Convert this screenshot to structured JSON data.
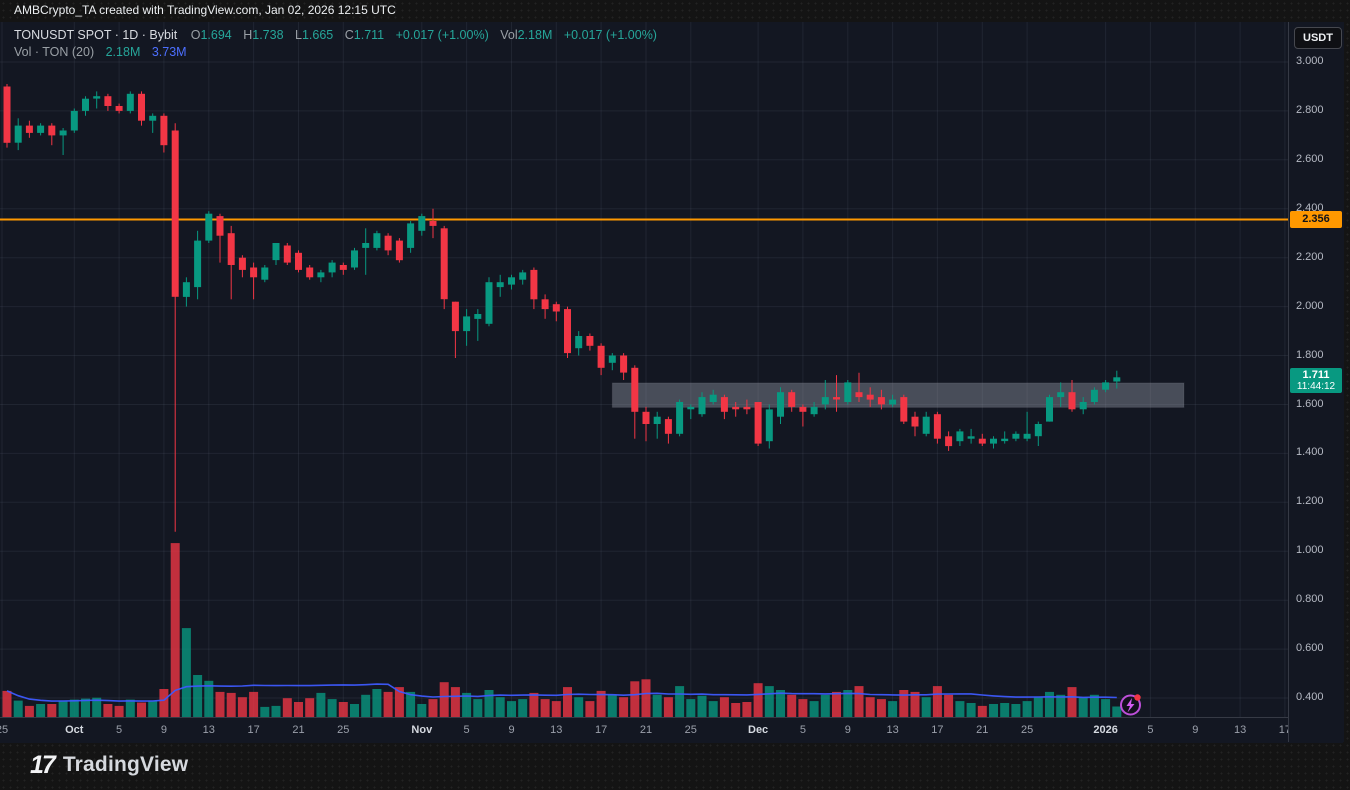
{
  "top_bar": {
    "attribution": "AMBCrypto_TA created with TradingView.com, Jan 02, 2026 12:15 UTC"
  },
  "legend": {
    "title": "TONUSDT SPOT · 1D · Bybit",
    "ohlc": [
      {
        "k": "O",
        "v": "1.694"
      },
      {
        "k": "H",
        "v": "1.738"
      },
      {
        "k": "L",
        "v": "1.665"
      },
      {
        "k": "C",
        "v": "1.711"
      }
    ],
    "change": "+0.017 (+1.00%)",
    "vol_k": "Vol",
    "vol_v": "2.18M",
    "vol_change": "+0.017 (+1.00%)",
    "row2_label": "Vol · TON (20)",
    "row2_v1": "2.18M",
    "row2_v2": "3.73M"
  },
  "axis": {
    "currency": "USDT",
    "price_ticks": [
      "3.000",
      "2.800",
      "2.600",
      "2.400",
      "2.200",
      "2.000",
      "1.800",
      "1.600",
      "1.400",
      "1.200",
      "1.000",
      "0.800",
      "0.600",
      "0.400"
    ],
    "time_ticks": [
      {
        "i": -0.45,
        "l": "25",
        "month": false
      },
      {
        "i": 6,
        "l": "Oct",
        "month": true
      },
      {
        "i": 10,
        "l": "5",
        "month": false
      },
      {
        "i": 14,
        "l": "9",
        "month": false
      },
      {
        "i": 18,
        "l": "13",
        "month": false
      },
      {
        "i": 22,
        "l": "17",
        "month": false
      },
      {
        "i": 26,
        "l": "21",
        "month": false
      },
      {
        "i": 30,
        "l": "25",
        "month": false
      },
      {
        "i": 37,
        "l": "Nov",
        "month": true
      },
      {
        "i": 41,
        "l": "5",
        "month": false
      },
      {
        "i": 45,
        "l": "9",
        "month": false
      },
      {
        "i": 49,
        "l": "13",
        "month": false
      },
      {
        "i": 53,
        "l": "17",
        "month": false
      },
      {
        "i": 57,
        "l": "21",
        "month": false
      },
      {
        "i": 61,
        "l": "25",
        "month": false
      },
      {
        "i": 67,
        "l": "Dec",
        "month": true
      },
      {
        "i": 71,
        "l": "5",
        "month": false
      },
      {
        "i": 75,
        "l": "9",
        "month": false
      },
      {
        "i": 79,
        "l": "13",
        "month": false
      },
      {
        "i": 83,
        "l": "17",
        "month": false
      },
      {
        "i": 87,
        "l": "21",
        "month": false
      },
      {
        "i": 91,
        "l": "25",
        "month": false
      },
      {
        "i": 98,
        "l": "2026",
        "month": true
      },
      {
        "i": 102,
        "l": "5",
        "month": false
      },
      {
        "i": 106,
        "l": "9",
        "month": false
      },
      {
        "i": 110,
        "l": "13",
        "month": false
      },
      {
        "i": 114,
        "l": "17",
        "month": false
      }
    ]
  },
  "price_labels": {
    "hline_value": "2.356",
    "last_value": "1.711",
    "countdown": "11:44:12"
  },
  "footer": {
    "logo_glyph": "17",
    "logo": "TradingView"
  },
  "colors": {
    "up": "#089981",
    "down": "#f23645",
    "hline": "#ff9800",
    "vol_ma": "#3d5afe",
    "zone_fill": "rgba(160,166,178,0.38)",
    "grid": "rgba(125,135,155,0.13)",
    "last_label_bg": "#089981",
    "flash_ring": "#bd4fd9",
    "flash_bolt": "#d35cf0",
    "flash_dot": "#f23645"
  },
  "chart_data": {
    "type": "candlestick+volume",
    "title": "TONUSDT SPOT · 1D · Bybit",
    "symbol": "TONUSDT",
    "exchange": "Bybit",
    "interval": "1D",
    "quote_currency": "USDT",
    "start_date": "2025-09-25",
    "end_date": "2026-01-02",
    "ylim": [
      0.35,
      3.08
    ],
    "grid": true,
    "hline_price": 2.356,
    "last_price": 1.711,
    "zone": {
      "from_index": 54,
      "to_index": 105,
      "price_top": 1.688,
      "price_bottom": 1.588
    },
    "vol_ma_period": 20,
    "vol_ma_last_m": 3.73,
    "last_volume_m": 2.18,
    "candles_note": "each row = [open, high, low, close, volume_in_millions], one per day from start_date",
    "candles": [
      [
        2.9,
        2.91,
        2.65,
        2.67,
        5.4
      ],
      [
        2.67,
        2.77,
        2.64,
        2.74,
        3.4
      ],
      [
        2.74,
        2.76,
        2.69,
        2.71,
        2.3
      ],
      [
        2.71,
        2.75,
        2.7,
        2.74,
        2.7
      ],
      [
        2.74,
        2.75,
        2.66,
        2.7,
        2.7
      ],
      [
        2.7,
        2.73,
        2.62,
        2.72,
        3.4
      ],
      [
        2.72,
        2.81,
        2.71,
        2.8,
        3.6
      ],
      [
        2.8,
        2.86,
        2.78,
        2.85,
        3.8
      ],
      [
        2.85,
        2.88,
        2.81,
        2.86,
        4.0
      ],
      [
        2.86,
        2.87,
        2.8,
        2.82,
        2.7
      ],
      [
        2.82,
        2.83,
        2.79,
        2.8,
        2.3
      ],
      [
        2.8,
        2.88,
        2.79,
        2.87,
        3.6
      ],
      [
        2.87,
        2.88,
        2.74,
        2.76,
        3.0
      ],
      [
        2.76,
        2.79,
        2.71,
        2.78,
        3.4
      ],
      [
        2.78,
        2.79,
        2.63,
        2.66,
        5.8
      ],
      [
        2.72,
        2.75,
        1.08,
        2.04,
        36.0
      ],
      [
        2.04,
        2.12,
        2.0,
        2.1,
        18.4
      ],
      [
        2.08,
        2.31,
        2.03,
        2.27,
        8.7
      ],
      [
        2.27,
        2.39,
        2.26,
        2.38,
        7.5
      ],
      [
        2.37,
        2.38,
        2.18,
        2.29,
        5.2
      ],
      [
        2.3,
        2.33,
        2.03,
        2.17,
        5.0
      ],
      [
        2.2,
        2.21,
        2.12,
        2.15,
        4.1
      ],
      [
        2.16,
        2.18,
        2.03,
        2.12,
        5.2
      ],
      [
        2.11,
        2.17,
        2.1,
        2.16,
        2.1
      ],
      [
        2.19,
        2.25,
        2.17,
        2.26,
        2.3
      ],
      [
        2.25,
        2.26,
        2.17,
        2.18,
        3.9
      ],
      [
        2.22,
        2.23,
        2.14,
        2.15,
        3.1
      ],
      [
        2.16,
        2.17,
        2.11,
        2.12,
        3.9
      ],
      [
        2.12,
        2.15,
        2.1,
        2.14,
        5.0
      ],
      [
        2.14,
        2.19,
        2.12,
        2.18,
        3.7
      ],
      [
        2.17,
        2.18,
        2.13,
        2.15,
        3.1
      ],
      [
        2.16,
        2.24,
        2.15,
        2.23,
        2.7
      ],
      [
        2.24,
        2.32,
        2.13,
        2.26,
        4.6
      ],
      [
        2.24,
        2.31,
        2.23,
        2.3,
        5.8
      ],
      [
        2.29,
        2.3,
        2.21,
        2.23,
        5.2
      ],
      [
        2.27,
        2.28,
        2.18,
        2.19,
        6.2
      ],
      [
        2.24,
        2.35,
        2.22,
        2.34,
        5.2
      ],
      [
        2.31,
        2.38,
        2.29,
        2.37,
        2.7
      ],
      [
        2.35,
        2.4,
        2.28,
        2.33,
        3.7
      ],
      [
        2.32,
        2.33,
        1.99,
        2.03,
        7.2
      ],
      [
        2.02,
        2.02,
        1.79,
        1.9,
        6.2
      ],
      [
        1.9,
        1.99,
        1.84,
        1.96,
        5.0
      ],
      [
        1.95,
        1.99,
        1.86,
        1.97,
        3.7
      ],
      [
        1.93,
        2.12,
        1.92,
        2.1,
        5.6
      ],
      [
        2.08,
        2.13,
        2.04,
        2.1,
        4.1
      ],
      [
        2.09,
        2.13,
        2.07,
        2.12,
        3.3
      ],
      [
        2.11,
        2.15,
        2.09,
        2.14,
        3.7
      ],
      [
        2.15,
        2.16,
        1.99,
        2.03,
        5.0
      ],
      [
        2.03,
        2.05,
        1.95,
        1.99,
        3.7
      ],
      [
        2.01,
        2.02,
        1.94,
        1.98,
        3.3
      ],
      [
        1.99,
        2.0,
        1.79,
        1.81,
        6.2
      ],
      [
        1.83,
        1.9,
        1.8,
        1.88,
        4.1
      ],
      [
        1.88,
        1.89,
        1.82,
        1.84,
        3.3
      ],
      [
        1.84,
        1.85,
        1.72,
        1.75,
        5.4
      ],
      [
        1.77,
        1.81,
        1.74,
        1.8,
        4.6
      ],
      [
        1.8,
        1.81,
        1.7,
        1.73,
        4.1
      ],
      [
        1.75,
        1.76,
        1.46,
        1.57,
        7.4
      ],
      [
        1.57,
        1.59,
        1.45,
        1.52,
        7.8
      ],
      [
        1.52,
        1.57,
        1.46,
        1.55,
        4.6
      ],
      [
        1.54,
        1.55,
        1.44,
        1.48,
        4.1
      ],
      [
        1.48,
        1.62,
        1.47,
        1.61,
        6.4
      ],
      [
        1.58,
        1.6,
        1.54,
        1.59,
        3.7
      ],
      [
        1.56,
        1.65,
        1.55,
        1.63,
        4.4
      ],
      [
        1.61,
        1.66,
        1.6,
        1.64,
        3.3
      ],
      [
        1.63,
        1.64,
        1.54,
        1.57,
        4.1
      ],
      [
        1.59,
        1.61,
        1.55,
        1.58,
        2.9
      ],
      [
        1.59,
        1.62,
        1.56,
        1.58,
        3.1
      ],
      [
        1.61,
        1.61,
        1.43,
        1.44,
        7.0
      ],
      [
        1.45,
        1.6,
        1.42,
        1.58,
        6.4
      ],
      [
        1.55,
        1.67,
        1.52,
        1.65,
        5.6
      ],
      [
        1.65,
        1.66,
        1.57,
        1.59,
        4.6
      ],
      [
        1.59,
        1.6,
        1.51,
        1.57,
        3.7
      ],
      [
        1.56,
        1.61,
        1.55,
        1.59,
        3.3
      ],
      [
        1.6,
        1.7,
        1.58,
        1.63,
        4.6
      ],
      [
        1.63,
        1.72,
        1.57,
        1.62,
        5.2
      ],
      [
        1.61,
        1.7,
        1.6,
        1.69,
        5.6
      ],
      [
        1.65,
        1.73,
        1.61,
        1.63,
        6.4
      ],
      [
        1.64,
        1.67,
        1.59,
        1.62,
        4.1
      ],
      [
        1.63,
        1.66,
        1.58,
        1.6,
        3.7
      ],
      [
        1.6,
        1.64,
        1.59,
        1.62,
        3.3
      ],
      [
        1.63,
        1.64,
        1.52,
        1.53,
        5.6
      ],
      [
        1.55,
        1.57,
        1.47,
        1.51,
        5.2
      ],
      [
        1.48,
        1.57,
        1.47,
        1.55,
        4.1
      ],
      [
        1.56,
        1.57,
        1.44,
        1.46,
        6.4
      ],
      [
        1.47,
        1.49,
        1.41,
        1.43,
        4.6
      ],
      [
        1.45,
        1.5,
        1.43,
        1.49,
        3.3
      ],
      [
        1.46,
        1.5,
        1.44,
        1.47,
        2.9
      ],
      [
        1.46,
        1.48,
        1.43,
        1.44,
        2.3
      ],
      [
        1.44,
        1.47,
        1.42,
        1.46,
        2.7
      ],
      [
        1.45,
        1.49,
        1.44,
        1.46,
        2.9
      ],
      [
        1.46,
        1.49,
        1.45,
        1.48,
        2.7
      ],
      [
        1.46,
        1.57,
        1.45,
        1.48,
        3.3
      ],
      [
        1.47,
        1.53,
        1.43,
        1.52,
        4.1
      ],
      [
        1.53,
        1.64,
        1.53,
        1.63,
        5.2
      ],
      [
        1.63,
        1.69,
        1.59,
        1.65,
        4.6
      ],
      [
        1.65,
        1.7,
        1.57,
        1.58,
        6.2
      ],
      [
        1.58,
        1.63,
        1.56,
        1.61,
        4.1
      ],
      [
        1.61,
        1.67,
        1.6,
        1.66,
        4.6
      ],
      [
        1.66,
        1.7,
        1.65,
        1.69,
        3.7
      ],
      [
        1.694,
        1.738,
        1.665,
        1.711,
        2.18
      ]
    ]
  }
}
